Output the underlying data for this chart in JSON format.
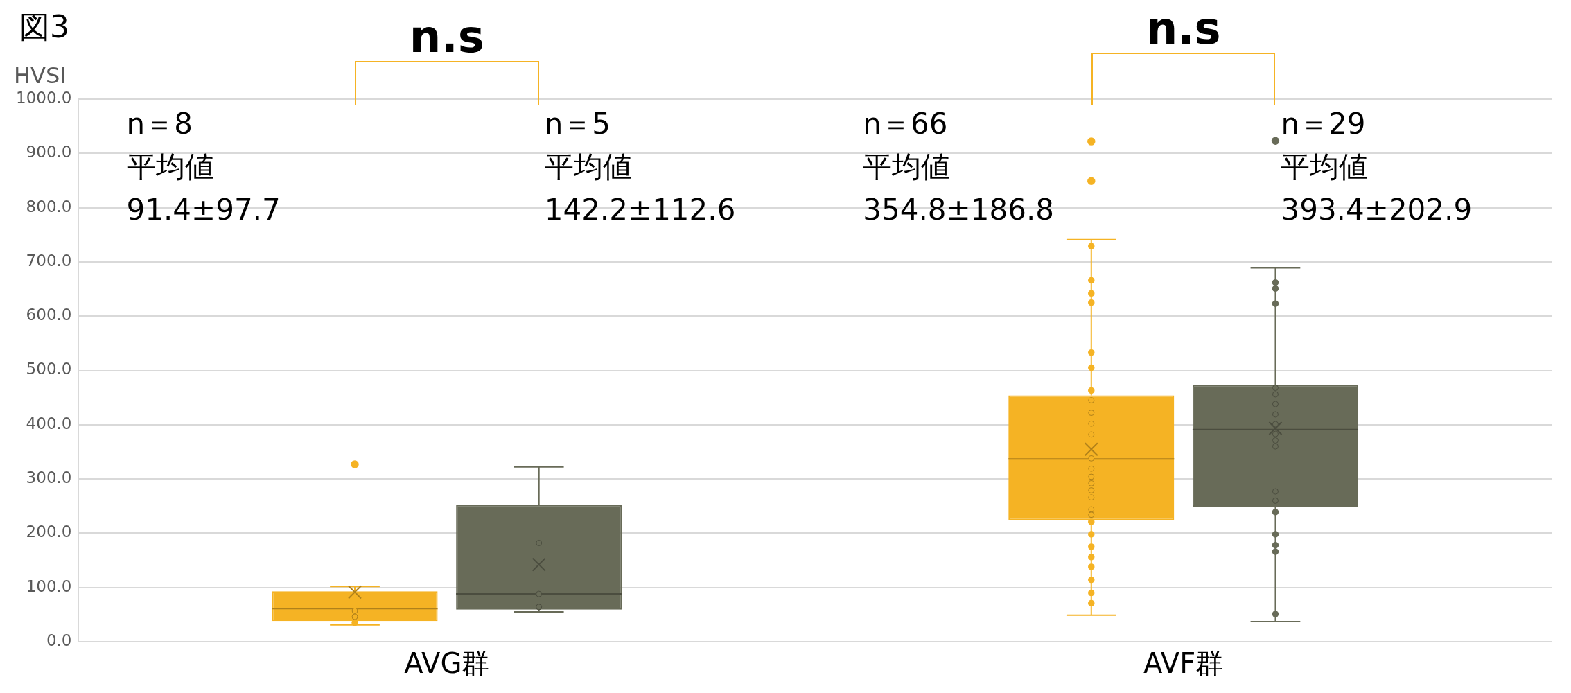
{
  "chart_data": {
    "type": "box",
    "title": "図3",
    "ylabel": "HVSI",
    "categories": [
      "AVG群",
      "AVF群"
    ],
    "ylim": [
      0,
      1000
    ],
    "yticks": [
      {
        "value": 0,
        "label": "0.0"
      },
      {
        "value": 100,
        "label": "100.0"
      },
      {
        "value": 200,
        "label": "200.0"
      },
      {
        "value": 300,
        "label": "300.0"
      },
      {
        "value": 400,
        "label": "400.0"
      },
      {
        "value": 500,
        "label": "500.0"
      },
      {
        "value": 600,
        "label": "600.0"
      },
      {
        "value": 700,
        "label": "700.0"
      },
      {
        "value": 800,
        "label": "800.0"
      },
      {
        "value": 900,
        "label": "900.0"
      },
      {
        "value": 1000,
        "label": "1000.0"
      }
    ],
    "grid": "y",
    "legend": false,
    "series": [
      {
        "type": "box",
        "color": "#f5b324",
        "boxes": [
          {
            "low": 31,
            "q1": 38,
            "median": 61,
            "q3": 93,
            "high": 102,
            "mean": 91.4,
            "outliers": [
              327
            ]
          },
          {
            "low": 49,
            "q1": 224,
            "median": 337,
            "q3": 454,
            "high": 741,
            "mean": 354.8,
            "outliers": [
              922,
              849
            ]
          }
        ]
      },
      {
        "type": "box",
        "color": "#686b58",
        "boxes": [
          {
            "low": 55,
            "q1": 59,
            "median": 88,
            "q3": 252,
            "high": 322,
            "mean": 142.2
          },
          {
            "low": 37,
            "q1": 249,
            "median": 391,
            "q3": 473,
            "high": 689,
            "mean": 393.4,
            "outliers": [
              923
            ]
          }
        ]
      },
      {
        "type": "scatter",
        "color": "#f5b324",
        "x": [
          "AVG群",
          "AVG群",
          "AVG群",
          "AVF群",
          "AVF群",
          "AVF群",
          "AVF群",
          "AVF群",
          "AVF群",
          "AVF群",
          "AVF群",
          "AVF群",
          "AVF群",
          "AVF群",
          "AVF群",
          "AVF群",
          "AVF群",
          "AVF群",
          "AVF群",
          "AVF群",
          "AVF群",
          "AVF群",
          "AVF群",
          "AVF群",
          "AVF群",
          "AVF群",
          "AVF群",
          "AVF群",
          "AVF群",
          "AVF群"
        ],
        "values": [
          57,
          46,
          35,
          729,
          666,
          642,
          625,
          533,
          505,
          463,
          445,
          422,
          402,
          382,
          338,
          319,
          304,
          292,
          279,
          266,
          244,
          234,
          221,
          198,
          175,
          156,
          138,
          114,
          90,
          71
        ]
      },
      {
        "type": "scatter",
        "color": "#686b58",
        "x": [
          "AVG群",
          "AVG群",
          "AVG群",
          "AVF群",
          "AVF群",
          "AVF群",
          "AVF群",
          "AVF群",
          "AVF群",
          "AVF群",
          "AVF群",
          "AVF群",
          "AVF群",
          "AVF群",
          "AVF群",
          "AVF群",
          "AVF群",
          "AVF群",
          "AVF群",
          "AVF群",
          "AVF群"
        ],
        "values": [
          182,
          88,
          64,
          662,
          651,
          623,
          468,
          456,
          438,
          419,
          401,
          383,
          371,
          360,
          277,
          260,
          239,
          198,
          178,
          166,
          51
        ]
      }
    ],
    "annotations": [
      "n＝8\n平均値\n91.4±97.7",
      "n＝5\n平均値\n142.2±112.6",
      "n＝66\n平均値\n354.8±186.8",
      "n＝29\n平均値\n393.4±202.9",
      "n.s",
      "n.s"
    ]
  }
}
